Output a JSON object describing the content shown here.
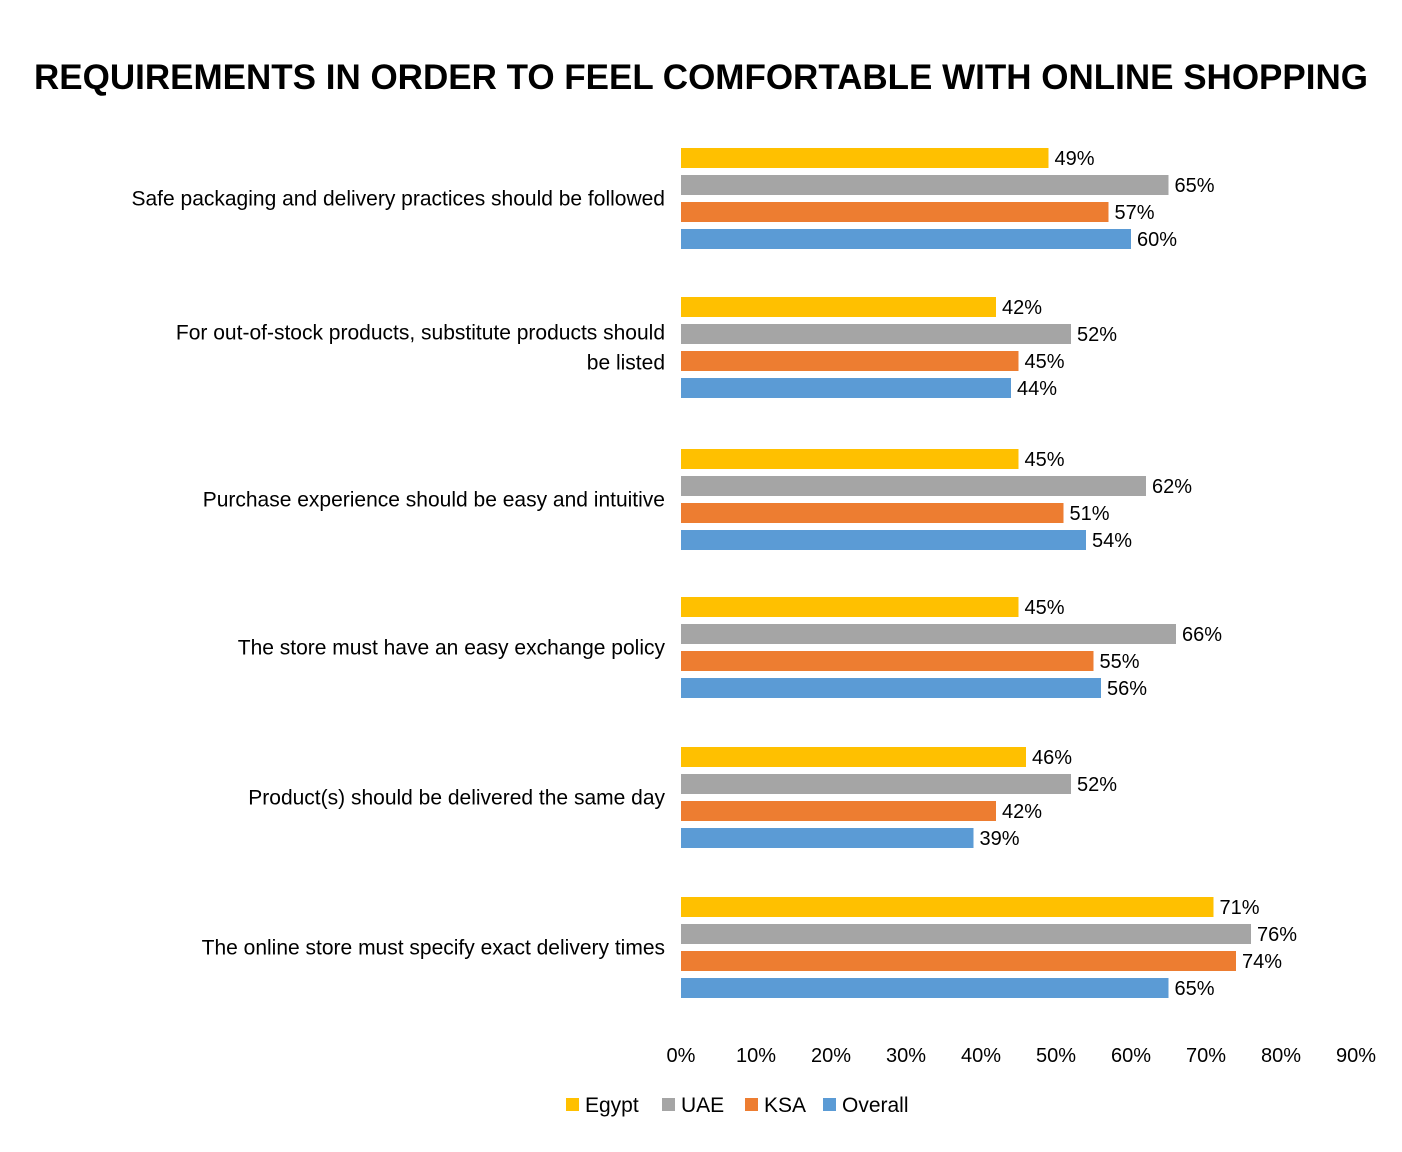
{
  "chart_data": {
    "type": "bar",
    "orientation": "horizontal",
    "title": "REQUIREMENTS IN ORDER TO FEEL COMFORTABLE WITH ONLINE SHOPPING",
    "categories": [
      [
        "Safe packaging and delivery practices should be followed"
      ],
      [
        "For out-of-stock products, substitute products should",
        "be listed"
      ],
      [
        "Purchase experience should be easy and intuitive"
      ],
      [
        "The store must have an easy exchange policy"
      ],
      [
        "Product(s) should be delivered the same day"
      ],
      [
        "The online store must specify exact delivery times"
      ]
    ],
    "series": [
      {
        "name": "Egypt",
        "color": "#FFC000",
        "values": [
          49,
          42,
          45,
          45,
          46,
          71
        ]
      },
      {
        "name": "UAE",
        "color": "#A5A5A5",
        "values": [
          65,
          52,
          62,
          66,
          52,
          76
        ]
      },
      {
        "name": "KSA",
        "color": "#ED7D31",
        "values": [
          57,
          45,
          51,
          55,
          42,
          74
        ]
      },
      {
        "name": "Overall",
        "color": "#5B9BD5",
        "values": [
          60,
          44,
          54,
          56,
          39,
          65
        ]
      }
    ],
    "value_suffix": "%",
    "xlim": [
      0,
      90
    ],
    "xticks": [
      0,
      10,
      20,
      30,
      40,
      50,
      60,
      70,
      80,
      90
    ],
    "xtick_labels": [
      "0%",
      "10%",
      "20%",
      "30%",
      "40%",
      "50%",
      "60%",
      "70%",
      "80%",
      "90%"
    ],
    "grid": false,
    "legend_position": "bottom"
  }
}
